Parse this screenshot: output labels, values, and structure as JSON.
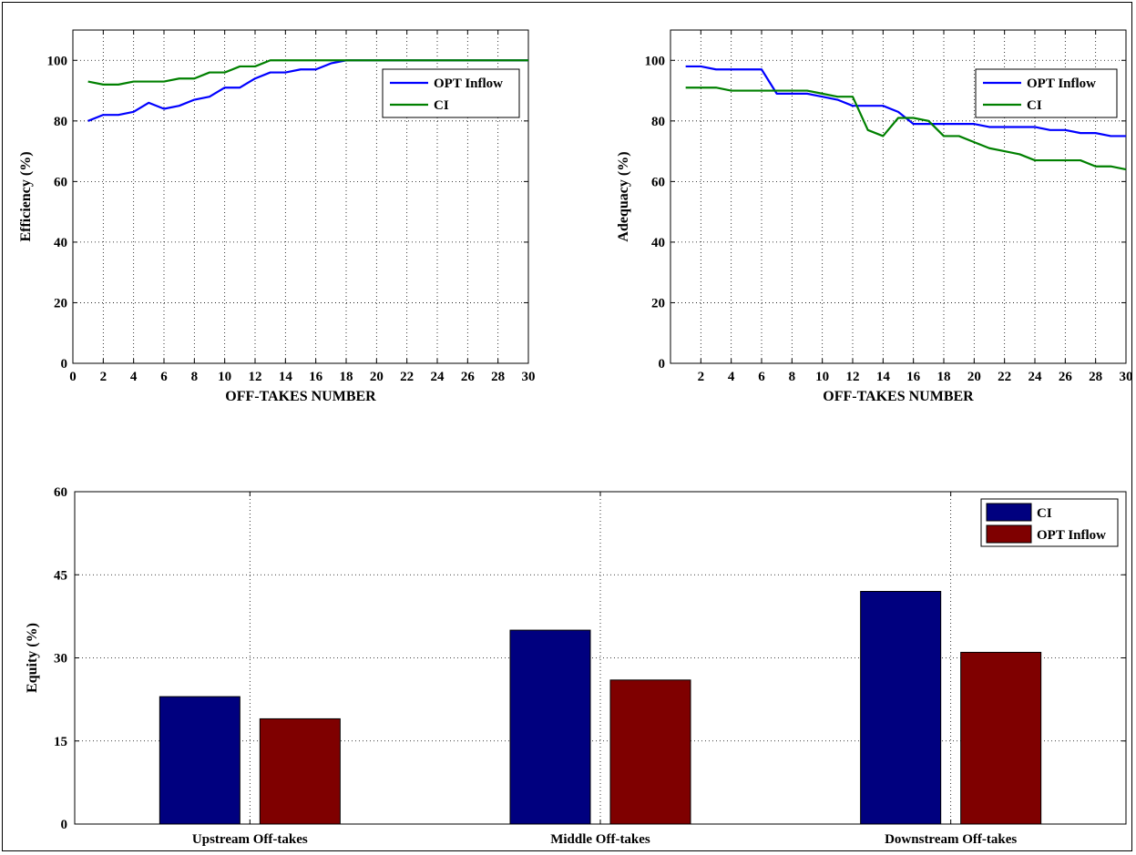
{
  "chart_data": [
    {
      "type": "line",
      "xlabel": "OFF-TAKES NUMBER",
      "ylabel": "Efficiency (%)",
      "xlim": [
        0,
        30
      ],
      "ylim": [
        0,
        110
      ],
      "xticks": [
        0,
        2,
        4,
        6,
        8,
        10,
        12,
        14,
        16,
        18,
        20,
        22,
        24,
        26,
        28,
        30
      ],
      "yticks": [
        0,
        20,
        40,
        60,
        80,
        100
      ],
      "grid": true,
      "legend_position": "top-right",
      "series": [
        {
          "name": "OPT Inflow",
          "color": "#0000ff",
          "x": [
            1,
            2,
            3,
            4,
            5,
            6,
            7,
            8,
            9,
            10,
            11,
            12,
            13,
            14,
            15,
            16,
            17,
            18,
            19,
            20,
            21,
            22,
            23,
            24,
            25,
            26,
            27,
            28,
            29,
            30
          ],
          "y": [
            80,
            82,
            82,
            83,
            86,
            84,
            85,
            87,
            88,
            91,
            91,
            94,
            96,
            96,
            97,
            97,
            99,
            100,
            100,
            100,
            100,
            100,
            100,
            100,
            100,
            100,
            100,
            100,
            100,
            100
          ]
        },
        {
          "name": "CI",
          "color": "#008000",
          "x": [
            1,
            2,
            3,
            4,
            5,
            6,
            7,
            8,
            9,
            10,
            11,
            12,
            13,
            14,
            15,
            16,
            17,
            18,
            19,
            20,
            21,
            22,
            23,
            24,
            25,
            26,
            27,
            28,
            29,
            30
          ],
          "y": [
            93,
            92,
            92,
            93,
            93,
            93,
            94,
            94,
            96,
            96,
            98,
            98,
            100,
            100,
            100,
            100,
            100,
            100,
            100,
            100,
            100,
            100,
            100,
            100,
            100,
            100,
            100,
            100,
            100,
            100
          ]
        }
      ]
    },
    {
      "type": "line",
      "xlabel": "OFF-TAKES NUMBER",
      "ylabel": "Adequacy (%)",
      "xlim": [
        0,
        30
      ],
      "ylim": [
        0,
        110
      ],
      "xticks": [
        2,
        4,
        6,
        8,
        10,
        12,
        14,
        16,
        18,
        20,
        22,
        24,
        26,
        28,
        30
      ],
      "yticks": [
        0,
        20,
        40,
        60,
        80,
        100
      ],
      "grid": true,
      "legend_position": "top-right",
      "series": [
        {
          "name": "OPT Inflow",
          "color": "#0000ff",
          "x": [
            1,
            2,
            3,
            4,
            5,
            6,
            7,
            8,
            9,
            10,
            11,
            12,
            13,
            14,
            15,
            16,
            17,
            18,
            19,
            20,
            21,
            22,
            23,
            24,
            25,
            26,
            27,
            28,
            29,
            30
          ],
          "y": [
            98,
            98,
            97,
            97,
            97,
            97,
            89,
            89,
            89,
            88,
            87,
            85,
            85,
            85,
            83,
            79,
            79,
            79,
            79,
            79,
            78,
            78,
            78,
            78,
            77,
            77,
            76,
            76,
            75,
            75
          ]
        },
        {
          "name": "CI",
          "color": "#008000",
          "x": [
            1,
            2,
            3,
            4,
            5,
            6,
            7,
            8,
            9,
            10,
            11,
            12,
            13,
            14,
            15,
            16,
            17,
            18,
            19,
            20,
            21,
            22,
            23,
            24,
            25,
            26,
            27,
            28,
            29,
            30
          ],
          "y": [
            91,
            91,
            91,
            90,
            90,
            90,
            90,
            90,
            90,
            89,
            88,
            88,
            77,
            75,
            81,
            81,
            80,
            75,
            75,
            73,
            71,
            70,
            69,
            67,
            67,
            67,
            67,
            65,
            65,
            64
          ]
        }
      ]
    },
    {
      "type": "bar",
      "xlabel": "",
      "ylabel": "Equity (%)",
      "ylim": [
        0,
        60
      ],
      "yticks": [
        0,
        15,
        30,
        45,
        60
      ],
      "grid": true,
      "legend_position": "top-right",
      "categories": [
        "Upstream Off-takes",
        "Middle Off-takes",
        "Downstream Off-takes"
      ],
      "series": [
        {
          "name": "CI",
          "color": "#00007f",
          "values": [
            23,
            35,
            42
          ]
        },
        {
          "name": "OPT Inflow",
          "color": "#7f0000",
          "values": [
            19,
            26,
            31
          ]
        }
      ]
    }
  ]
}
